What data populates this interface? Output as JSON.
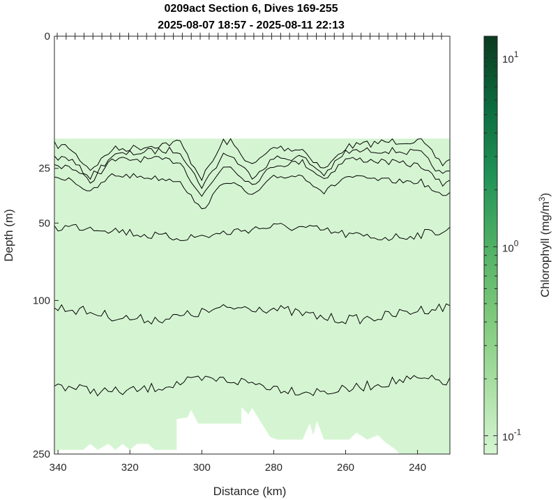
{
  "chart_data": {
    "type": "heatmap",
    "title": "0209act Section 6, Dives 169-255",
    "subtitle": "2025-08-07 18:57 - 2025-08-11 22:13",
    "xlabel": "Distance (km)",
    "ylabel": "Depth (m)",
    "xlim": [
      341,
      231
    ],
    "ylim": [
      0,
      250
    ],
    "y_scale": "sqrt",
    "x_ticks": [
      "340",
      "320",
      "300",
      "280",
      "260",
      "240"
    ],
    "x_tick_values": [
      340,
      320,
      300,
      280,
      260,
      240
    ],
    "y_ticks": [
      "0",
      "25",
      "50",
      "100",
      "250"
    ],
    "y_tick_values": [
      0,
      25,
      50,
      100,
      250
    ],
    "grid": false,
    "fill_color": "#d5f5d2",
    "data_start_depth_m": 15,
    "colorbar": {
      "label": "Chlorophyll (mg/m",
      "label_sup": "3",
      "label_end": ")",
      "scale": "log",
      "range": [
        0.08,
        13
      ],
      "ticks": [
        {
          "base": "10",
          "exp": "1",
          "value": 10
        },
        {
          "base": "10",
          "exp": "0",
          "value": 1
        },
        {
          "base": "10",
          "exp": "-1",
          "value": 0.1
        }
      ],
      "colors": [
        "#d5f5d2",
        "#a8dfa2",
        "#7cc87a",
        "#4fb064",
        "#219257",
        "#0c6b3e",
        "#0a3a20"
      ]
    },
    "contour_depths_m": [
      17,
      20,
      23,
      29,
      55,
      110,
      175
    ],
    "dive_ticks_count": 44,
    "seafloor_profile": [
      {
        "x": 341,
        "d": 250
      },
      {
        "x": 340,
        "d": 245
      },
      {
        "x": 333,
        "d": 245
      },
      {
        "x": 331,
        "d": 238
      },
      {
        "x": 329,
        "d": 245
      },
      {
        "x": 326,
        "d": 238
      },
      {
        "x": 324,
        "d": 245
      },
      {
        "x": 322,
        "d": 238
      },
      {
        "x": 320,
        "d": 245
      },
      {
        "x": 318,
        "d": 238
      },
      {
        "x": 315,
        "d": 238
      },
      {
        "x": 313,
        "d": 245
      },
      {
        "x": 307,
        "d": 245
      },
      {
        "x": 307,
        "d": 210
      },
      {
        "x": 304,
        "d": 208
      },
      {
        "x": 303,
        "d": 200
      },
      {
        "x": 301,
        "d": 215
      },
      {
        "x": 289,
        "d": 215
      },
      {
        "x": 289,
        "d": 197
      },
      {
        "x": 287,
        "d": 205
      },
      {
        "x": 286,
        "d": 198
      },
      {
        "x": 281,
        "d": 230
      },
      {
        "x": 279,
        "d": 233
      },
      {
        "x": 272,
        "d": 233
      },
      {
        "x": 270,
        "d": 215
      },
      {
        "x": 269,
        "d": 228
      },
      {
        "x": 268,
        "d": 212
      },
      {
        "x": 266,
        "d": 233
      },
      {
        "x": 259,
        "d": 233
      },
      {
        "x": 257,
        "d": 225
      },
      {
        "x": 254,
        "d": 233
      },
      {
        "x": 251,
        "d": 228
      },
      {
        "x": 249,
        "d": 236
      },
      {
        "x": 246,
        "d": 245
      },
      {
        "x": 245,
        "d": 250
      }
    ]
  }
}
